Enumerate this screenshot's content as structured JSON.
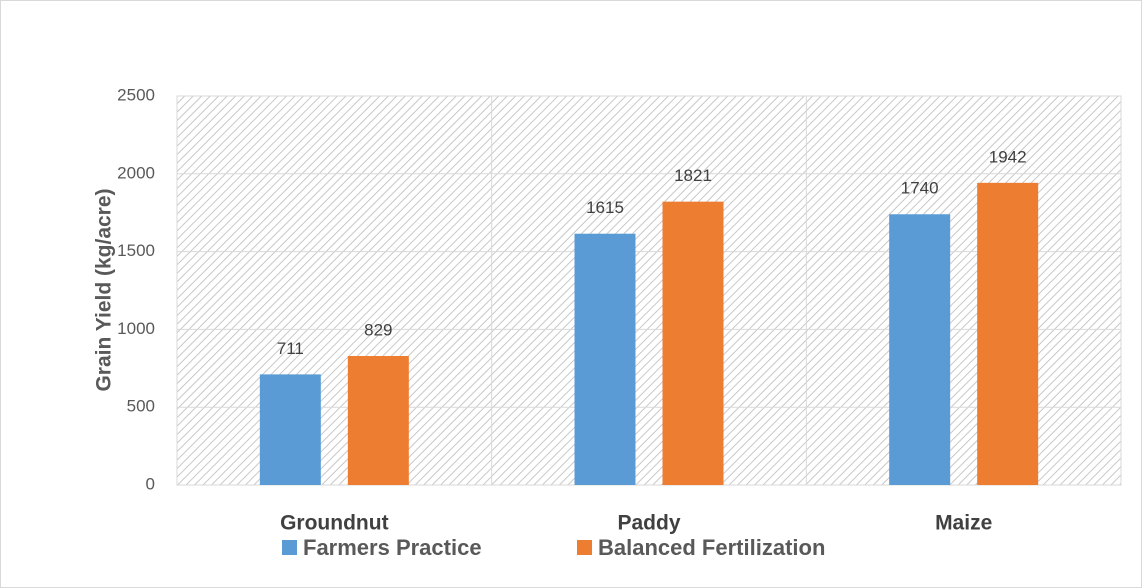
{
  "chart_data": {
    "type": "bar",
    "y_label": "Grain Yield (kg/acre)",
    "categories": [
      "Groundnut",
      "Paddy",
      "Maize"
    ],
    "series": [
      {
        "name": "Farmers Practice",
        "color": "#5b9bd5",
        "values": [
          711,
          1615,
          1740
        ]
      },
      {
        "name": "Balanced Fertilization",
        "color": "#ed7d31",
        "values": [
          829,
          1821,
          1942
        ]
      }
    ],
    "ylim": [
      0,
      2500
    ],
    "yticks": [
      0,
      500,
      1000,
      1500,
      2000,
      2500
    ],
    "grid": true,
    "legend": "bottom"
  }
}
